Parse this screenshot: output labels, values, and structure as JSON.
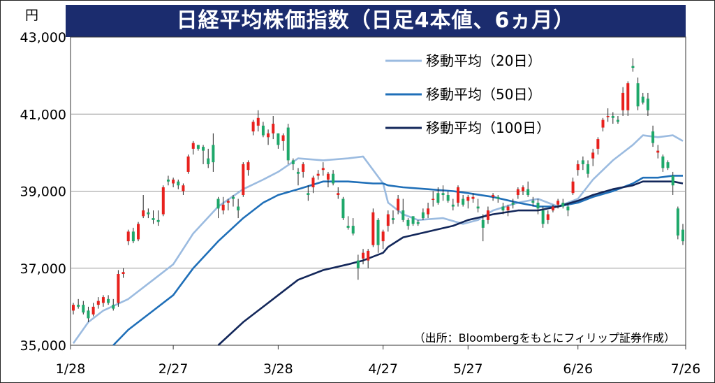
{
  "chart_data": {
    "type": "candlestick",
    "title": "日経平均株価指数（日足4本値、6ヵ月）",
    "unit_label": "円",
    "source": "（出所：Bloombergをもとにフィリップ証券作成）",
    "x_tick_labels": [
      "1/28",
      "2/27",
      "3/28",
      "4/27",
      "5/27",
      "6/26",
      "7/26"
    ],
    "y_tick_labels": [
      "43,000",
      "41,000",
      "39,000",
      "37,000",
      "35,000"
    ],
    "ylim": [
      35000,
      43000
    ],
    "grid": "horizontal",
    "legend_position": "top-right",
    "colors": {
      "up": "#e8211d",
      "down": "#1ea86a",
      "ma20": "#9bbbe0",
      "ma50": "#1f6fb8",
      "ma100": "#13275a",
      "title_bg": "#1b2c6e"
    },
    "moving_averages": [
      {
        "name": "移動平均（20日）",
        "color": "#9bbbe0",
        "points": [
          [
            "1/28",
            35050
          ],
          [
            "1/31",
            35600
          ],
          [
            "2/5",
            35900
          ],
          [
            "2/13",
            36200
          ],
          [
            "2/20",
            36700
          ],
          [
            "2/27",
            37100
          ],
          [
            "3/4",
            37900
          ],
          [
            "3/11",
            38600
          ],
          [
            "3/18",
            39050
          ],
          [
            "3/25",
            39300
          ],
          [
            "3/28",
            39500
          ],
          [
            "4/3",
            39850
          ],
          [
            "4/10",
            39800
          ],
          [
            "4/17",
            39850
          ],
          [
            "4/22",
            39900
          ],
          [
            "4/26",
            39200
          ],
          [
            "5/1",
            38700
          ],
          [
            "5/8",
            38400
          ],
          [
            "5/13",
            38250
          ],
          [
            "5/20",
            38300
          ],
          [
            "5/24",
            38150
          ],
          [
            "5/29",
            38250
          ],
          [
            "6/3",
            38500
          ],
          [
            "6/10",
            38700
          ],
          [
            "6/14",
            38800
          ],
          [
            "6/20",
            38600
          ],
          [
            "6/26",
            38800
          ],
          [
            "7/1",
            39300
          ],
          [
            "7/5",
            39800
          ],
          [
            "7/11",
            40200
          ],
          [
            "7/16",
            40450
          ],
          [
            "7/19",
            40400
          ],
          [
            "7/24",
            40450
          ],
          [
            "7/26",
            40300
          ]
        ]
      },
      {
        "name": "移動平均（50日）",
        "color": "#1f6fb8",
        "points": [
          [
            "2/7",
            35000
          ],
          [
            "2/13",
            35400
          ],
          [
            "2/20",
            35900
          ],
          [
            "2/27",
            36300
          ],
          [
            "3/4",
            37000
          ],
          [
            "3/11",
            37700
          ],
          [
            "3/18",
            38300
          ],
          [
            "3/25",
            38700
          ],
          [
            "3/28",
            38900
          ],
          [
            "4/3",
            39050
          ],
          [
            "4/10",
            39250
          ],
          [
            "4/17",
            39250
          ],
          [
            "4/24",
            39200
          ],
          [
            "4/27",
            39200
          ],
          [
            "5/1",
            39150
          ],
          [
            "5/8",
            39100
          ],
          [
            "5/15",
            39050
          ],
          [
            "5/22",
            39000
          ],
          [
            "5/27",
            38950
          ],
          [
            "6/3",
            38850
          ],
          [
            "6/10",
            38700
          ],
          [
            "6/14",
            38600
          ],
          [
            "6/20",
            38600
          ],
          [
            "6/26",
            38700
          ],
          [
            "7/1",
            38850
          ],
          [
            "7/5",
            39000
          ],
          [
            "7/11",
            39200
          ],
          [
            "7/16",
            39350
          ],
          [
            "7/19",
            39350
          ],
          [
            "7/24",
            39400
          ],
          [
            "7/26",
            39400
          ]
        ]
      },
      {
        "name": "移動平均（100日）",
        "color": "#13275a",
        "points": [
          [
            "3/11",
            35000
          ],
          [
            "3/18",
            35600
          ],
          [
            "3/25",
            36000
          ],
          [
            "3/28",
            36300
          ],
          [
            "4/3",
            36700
          ],
          [
            "4/10",
            36950
          ],
          [
            "4/17",
            37100
          ],
          [
            "4/22",
            37200
          ],
          [
            "4/27",
            37400
          ],
          [
            "5/1",
            37550
          ],
          [
            "5/8",
            37800
          ],
          [
            "5/15",
            37950
          ],
          [
            "5/22",
            38100
          ],
          [
            "5/27",
            38250
          ],
          [
            "6/3",
            38400
          ],
          [
            "6/10",
            38500
          ],
          [
            "6/14",
            38500
          ],
          [
            "6/20",
            38600
          ],
          [
            "6/26",
            38750
          ],
          [
            "7/1",
            38900
          ],
          [
            "7/5",
            39050
          ],
          [
            "7/11",
            39150
          ],
          [
            "7/16",
            39250
          ],
          [
            "7/19",
            39250
          ],
          [
            "7/24",
            39250
          ],
          [
            "7/26",
            39200
          ]
        ]
      }
    ],
    "candles": [
      [
        "1/28",
        35900,
        36100,
        35800,
        36050
      ],
      [
        "1/29",
        36050,
        36200,
        35950,
        36000
      ],
      [
        "1/30",
        36050,
        36150,
        35800,
        35850
      ],
      [
        "1/31",
        35900,
        36000,
        35600,
        35700
      ],
      [
        "2/1",
        35800,
        36100,
        35750,
        36000
      ],
      [
        "2/2",
        36050,
        36250,
        35950,
        36150
      ],
      [
        "2/5",
        36100,
        36300,
        36000,
        36250
      ],
      [
        "2/6",
        36200,
        36300,
        36050,
        36100
      ],
      [
        "2/7",
        36050,
        36200,
        35900,
        35950
      ],
      [
        "2/8",
        36100,
        36950,
        36000,
        36850
      ],
      [
        "2/9",
        36850,
        37000,
        36750,
        36900
      ],
      [
        "2/13",
        37700,
        38000,
        37600,
        37950
      ],
      [
        "2/14",
        37950,
        38050,
        37650,
        37700
      ],
      [
        "2/15",
        37750,
        38200,
        37700,
        38150
      ],
      [
        "2/16",
        38350,
        38900,
        38300,
        38500
      ],
      [
        "2/19",
        38450,
        38550,
        38300,
        38400
      ],
      [
        "2/20",
        38300,
        38500,
        38150,
        38250
      ],
      [
        "2/21",
        38250,
        38500,
        38100,
        38200
      ],
      [
        "2/22",
        38400,
        39150,
        38350,
        39100
      ],
      [
        "2/26",
        39300,
        39400,
        39150,
        39250
      ],
      [
        "2/27",
        39200,
        39350,
        39100,
        39300
      ],
      [
        "2/28",
        39250,
        39300,
        39050,
        39150
      ],
      [
        "2/29",
        39000,
        39200,
        38900,
        39150
      ],
      [
        "3/1",
        39500,
        39950,
        39450,
        39900
      ],
      [
        "3/4",
        40100,
        40300,
        39950,
        40250
      ],
      [
        "3/5",
        40200,
        40200,
        40050,
        40100
      ],
      [
        "3/6",
        40150,
        40200,
        39700,
        40050
      ],
      [
        "3/7",
        39850,
        40100,
        39600,
        39700
      ],
      [
        "3/8",
        40200,
        40500,
        39500,
        39750
      ],
      [
        "3/11",
        38800,
        38850,
        38300,
        38550
      ],
      [
        "3/12",
        38500,
        38850,
        38400,
        38650
      ],
      [
        "3/13",
        38700,
        38800,
        38500,
        38750
      ],
      [
        "3/14",
        38850,
        38900,
        38600,
        38800
      ],
      [
        "3/15",
        38600,
        38800,
        38300,
        38500
      ],
      [
        "3/18",
        38900,
        39750,
        38850,
        39700
      ],
      [
        "3/19",
        39550,
        39800,
        39400,
        39750
      ],
      [
        "3/21",
        40550,
        40850,
        40450,
        40800
      ],
      [
        "3/22",
        40700,
        41100,
        40550,
        40900
      ],
      [
        "3/25",
        40700,
        40800,
        40400,
        40450
      ],
      [
        "3/26",
        40400,
        40600,
        40200,
        40500
      ],
      [
        "3/27",
        40500,
        40950,
        40350,
        40750
      ],
      [
        "3/28",
        40500,
        40500,
        40100,
        40200
      ],
      [
        "3/29",
        40300,
        40500,
        40050,
        40450
      ],
      [
        "4/1",
        40650,
        40750,
        39700,
        39800
      ],
      [
        "4/2",
        39800,
        39850,
        39550,
        39700
      ],
      [
        "4/3",
        39500,
        39600,
        39150,
        39450
      ],
      [
        "4/4",
        39500,
        39750,
        39350,
        39700
      ],
      [
        "4/5",
        38950,
        39150,
        38750,
        38900
      ],
      [
        "4/8",
        39100,
        39400,
        38950,
        39350
      ],
      [
        "4/9",
        39400,
        39550,
        39300,
        39450
      ],
      [
        "4/10",
        39550,
        39750,
        39400,
        39600
      ],
      [
        "4/11",
        39300,
        39500,
        39100,
        39450
      ],
      [
        "4/12",
        39450,
        39550,
        39150,
        39200
      ],
      [
        "4/15",
        38900,
        39100,
        38800,
        38950
      ],
      [
        "4/16",
        38800,
        38850,
        38250,
        38300
      ],
      [
        "4/17",
        38100,
        38350,
        38000,
        38050
      ],
      [
        "4/18",
        38100,
        38300,
        37850,
        37900
      ],
      [
        "4/19",
        37200,
        37350,
        36700,
        37000
      ],
      [
        "4/22",
        37250,
        37500,
        37100,
        37400
      ],
      [
        "4/23",
        37200,
        37500,
        37000,
        37450
      ],
      [
        "4/24",
        37600,
        38550,
        37550,
        38450
      ],
      [
        "4/25",
        38250,
        38300,
        37400,
        37600
      ],
      [
        "4/26",
        37700,
        38000,
        37500,
        37950
      ],
      [
        "5/1",
        38100,
        38500,
        37950,
        38400
      ],
      [
        "5/2",
        38300,
        38500,
        38150,
        38250
      ],
      [
        "5/7",
        38500,
        38900,
        38400,
        38800
      ],
      [
        "5/8",
        38500,
        38800,
        38200,
        38250
      ],
      [
        "5/9",
        38250,
        38300,
        38000,
        38100
      ],
      [
        "5/10",
        38350,
        38350,
        38100,
        38150
      ],
      [
        "5/13",
        38200,
        38250,
        38100,
        38150
      ],
      [
        "5/14",
        38450,
        38550,
        38250,
        38300
      ],
      [
        "5/15",
        38400,
        38700,
        38300,
        38550
      ],
      [
        "5/16",
        38800,
        39000,
        38600,
        38800
      ],
      [
        "5/17",
        38950,
        39100,
        38650,
        38700
      ],
      [
        "5/20",
        38950,
        39150,
        38750,
        38900
      ],
      [
        "5/21",
        38900,
        39000,
        38700,
        38750
      ],
      [
        "5/22",
        38650,
        38800,
        38500,
        38600
      ],
      [
        "5/23",
        38700,
        39150,
        38600,
        39100
      ],
      [
        "5/24",
        38800,
        38900,
        38600,
        38650
      ],
      [
        "5/27",
        38750,
        38900,
        38550,
        38850
      ],
      [
        "5/28",
        38800,
        38950,
        38700,
        38850
      ],
      [
        "5/29",
        38600,
        38800,
        38450,
        38550
      ],
      [
        "5/30",
        38250,
        38400,
        37700,
        38050
      ],
      [
        "5/31",
        38250,
        38600,
        38150,
        38500
      ],
      [
        "6/3",
        38850,
        38950,
        38750,
        38900
      ],
      [
        "6/4",
        38850,
        38900,
        38700,
        38800
      ],
      [
        "6/5",
        38600,
        38700,
        38400,
        38500
      ],
      [
        "6/6",
        38500,
        38650,
        38350,
        38600
      ],
      [
        "6/7",
        38700,
        38800,
        38550,
        38650
      ],
      [
        "6/10",
        38900,
        39100,
        38800,
        39050
      ],
      [
        "6/11",
        39000,
        39150,
        38900,
        39100
      ],
      [
        "6/12",
        39050,
        39250,
        38850,
        38900
      ],
      [
        "6/13",
        38750,
        38850,
        38600,
        38700
      ],
      [
        "6/14",
        38700,
        38800,
        38400,
        38550
      ],
      [
        "6/17",
        38500,
        38600,
        38050,
        38150
      ],
      [
        "6/18",
        38250,
        38500,
        38150,
        38400
      ],
      [
        "6/19",
        38500,
        38650,
        38450,
        38600
      ],
      [
        "6/20",
        38650,
        38800,
        38550,
        38750
      ],
      [
        "6/21",
        38700,
        38800,
        38550,
        38600
      ],
      [
        "6/24",
        38600,
        38700,
        38350,
        38500
      ],
      [
        "6/25",
        38950,
        39350,
        38900,
        39250
      ],
      [
        "6/26",
        39550,
        39800,
        39400,
        39700
      ],
      [
        "6/27",
        39800,
        39900,
        39550,
        39700
      ],
      [
        "6/28",
        39700,
        39800,
        39350,
        39450
      ],
      [
        "7/1",
        39850,
        40100,
        39650,
        40000
      ],
      [
        "7/2",
        40100,
        40400,
        39950,
        40350
      ],
      [
        "7/3",
        40650,
        40900,
        40550,
        40850
      ],
      [
        "7/4",
        40950,
        41150,
        40800,
        40950
      ],
      [
        "7/5",
        40950,
        41050,
        40750,
        40900
      ],
      [
        "7/8",
        40850,
        40950,
        40750,
        40800
      ],
      [
        "7/9",
        41100,
        41700,
        40950,
        41550
      ],
      [
        "7/10",
        41100,
        41850,
        40950,
        41800
      ],
      [
        "7/11",
        42250,
        42450,
        42100,
        42200
      ],
      [
        "7/12",
        41800,
        41950,
        41100,
        41200
      ],
      [
        "7/16",
        41450,
        41550,
        41250,
        41300
      ],
      [
        "7/17",
        41400,
        41550,
        40950,
        41100
      ],
      [
        "7/18",
        40550,
        40700,
        40150,
        40250
      ],
      [
        "7/19",
        40000,
        40200,
        39850,
        40050
      ],
      [
        "7/22",
        39900,
        39950,
        39500,
        39600
      ],
      [
        "7/23",
        39750,
        39800,
        39550,
        39600
      ],
      [
        "7/24",
        39400,
        39500,
        38900,
        39150
      ],
      [
        "7/25",
        38550,
        38600,
        37750,
        37850
      ],
      [
        "7/26",
        38000,
        38150,
        37600,
        37700
      ]
    ]
  }
}
